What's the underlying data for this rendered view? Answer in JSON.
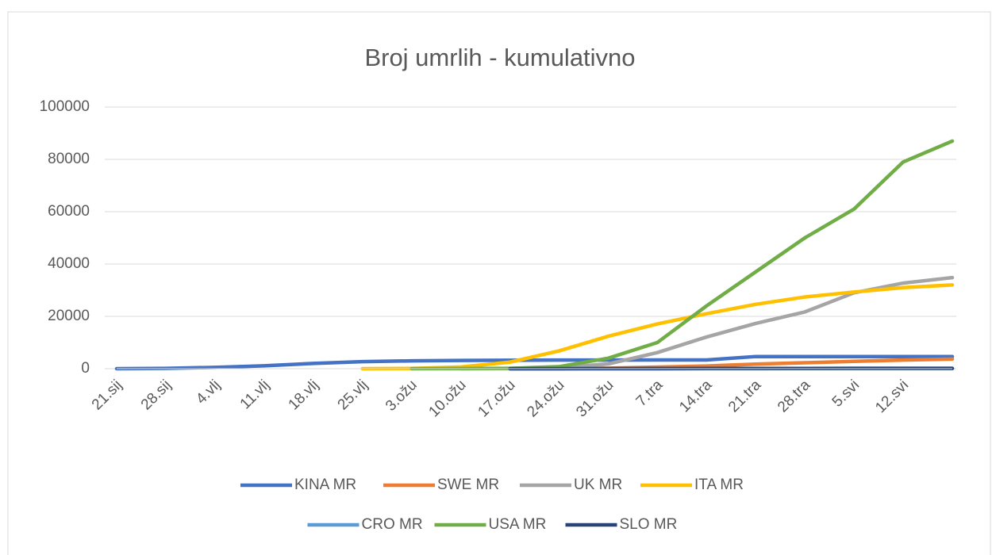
{
  "chart_data": {
    "type": "line",
    "title": "Broj umrlih - kumulativno",
    "categories": [
      "21.sij",
      "28.sij",
      "4.vlj",
      "11.vlj",
      "18.vlj",
      "25.vlj",
      "3.ožu",
      "10.ožu",
      "17.ožu",
      "24.ožu",
      "31.ožu",
      "7.tra",
      "14.tra",
      "21.tra",
      "28.tra",
      "5.svi",
      "12.svi",
      null
    ],
    "series": [
      {
        "name": "KINA MR",
        "color": "#4472c4",
        "values": [
          17,
          132,
          490,
          1110,
          2000,
          2700,
          2980,
          3140,
          3230,
          3280,
          3310,
          3330,
          3340,
          4640,
          4640,
          4640,
          4640,
          4640
        ]
      },
      {
        "name": "SWE MR",
        "color": "#ed7d31",
        "values": [
          null,
          null,
          null,
          null,
          null,
          null,
          null,
          null,
          10,
          40,
          180,
          590,
          1030,
          1760,
          2270,
          2800,
          3300,
          3680
        ]
      },
      {
        "name": "UK MR",
        "color": "#a5a5a5",
        "values": [
          null,
          null,
          null,
          null,
          null,
          null,
          null,
          6,
          70,
          420,
          1800,
          6160,
          12100,
          17300,
          21700,
          29000,
          32700,
          34800
        ]
      },
      {
        "name": "ITA MR",
        "color": "#ffc000",
        "values": [
          null,
          null,
          null,
          null,
          null,
          7,
          80,
          630,
          2500,
          6800,
          12400,
          17100,
          21000,
          24600,
          27400,
          29300,
          31000,
          32000
        ]
      },
      {
        "name": "CRO MR",
        "color": "#5b9bd5",
        "values": [
          null,
          null,
          null,
          null,
          null,
          null,
          null,
          null,
          0,
          1,
          6,
          18,
          39,
          52,
          67,
          95,
          100,
          101
        ]
      },
      {
        "name": "USA MR",
        "color": "#70ad47",
        "values": [
          null,
          null,
          null,
          null,
          null,
          null,
          9,
          30,
          110,
          780,
          4000,
          10000,
          24000,
          37000,
          50000,
          61000,
          79000,
          87000
        ]
      },
      {
        "name": "SLO MR",
        "color": "#264478",
        "values": [
          null,
          null,
          null,
          null,
          null,
          null,
          null,
          null,
          1,
          3,
          28,
          45,
          66,
          79,
          88,
          97,
          102,
          103
        ]
      }
    ],
    "ylim": [
      0,
      100000
    ],
    "yticks": [
      0,
      20000,
      40000,
      60000,
      80000,
      100000
    ],
    "grid": true,
    "legend": "bottom"
  }
}
